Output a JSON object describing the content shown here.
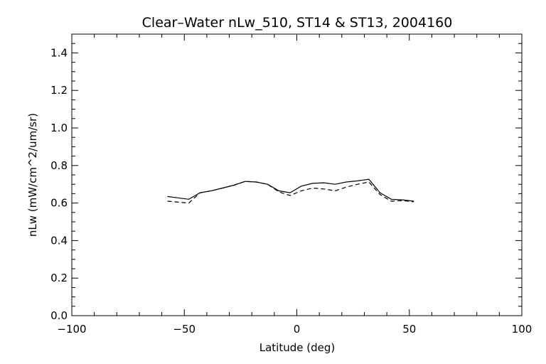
{
  "chart_data": {
    "type": "line",
    "title": "Clear–Water nLw_510, ST14 & ST13, 2004160",
    "xlabel": "Latitude (deg)",
    "ylabel": "nLw (mW/cm^2/um/sr)",
    "xlim": [
      -100,
      100
    ],
    "ylim": [
      0.0,
      1.5
    ],
    "x_ticks": [
      -100,
      -50,
      0,
      50,
      100
    ],
    "x_tick_labels": [
      "−100",
      "−50",
      "0",
      "50",
      "100"
    ],
    "y_ticks": [
      0.0,
      0.2,
      0.4,
      0.6,
      0.8,
      1.0,
      1.2,
      1.4
    ],
    "y_tick_labels": [
      "0.0",
      "0.2",
      "0.4",
      "0.6",
      "0.8",
      "1.0",
      "1.2",
      "1.4"
    ],
    "grid": false,
    "series": [
      {
        "style": "solid",
        "x": [
          -57.5,
          -48,
          -43,
          -38,
          -33,
          -28,
          -23,
          -18,
          -13,
          -8,
          -3,
          2,
          7,
          12,
          17,
          22,
          27,
          32,
          37,
          42,
          47,
          52
        ],
        "y": [
          0.635,
          0.62,
          0.655,
          0.665,
          0.68,
          0.695,
          0.715,
          0.712,
          0.7,
          0.665,
          0.655,
          0.69,
          0.705,
          0.708,
          0.7,
          0.712,
          0.718,
          0.727,
          0.655,
          0.62,
          0.617,
          0.61
        ]
      },
      {
        "style": "dashed",
        "x": [
          -57.5,
          -48,
          -43,
          -38,
          -33,
          -28,
          -23,
          -18,
          -13,
          -8,
          -3,
          2,
          7,
          12,
          17,
          22,
          27,
          32,
          37,
          42,
          47,
          52
        ],
        "y": [
          0.61,
          0.6,
          0.655,
          0.665,
          0.68,
          0.695,
          0.715,
          0.712,
          0.7,
          0.66,
          0.64,
          0.665,
          0.68,
          0.675,
          0.665,
          0.685,
          0.7,
          0.712,
          0.645,
          0.61,
          0.613,
          0.607
        ]
      }
    ]
  }
}
